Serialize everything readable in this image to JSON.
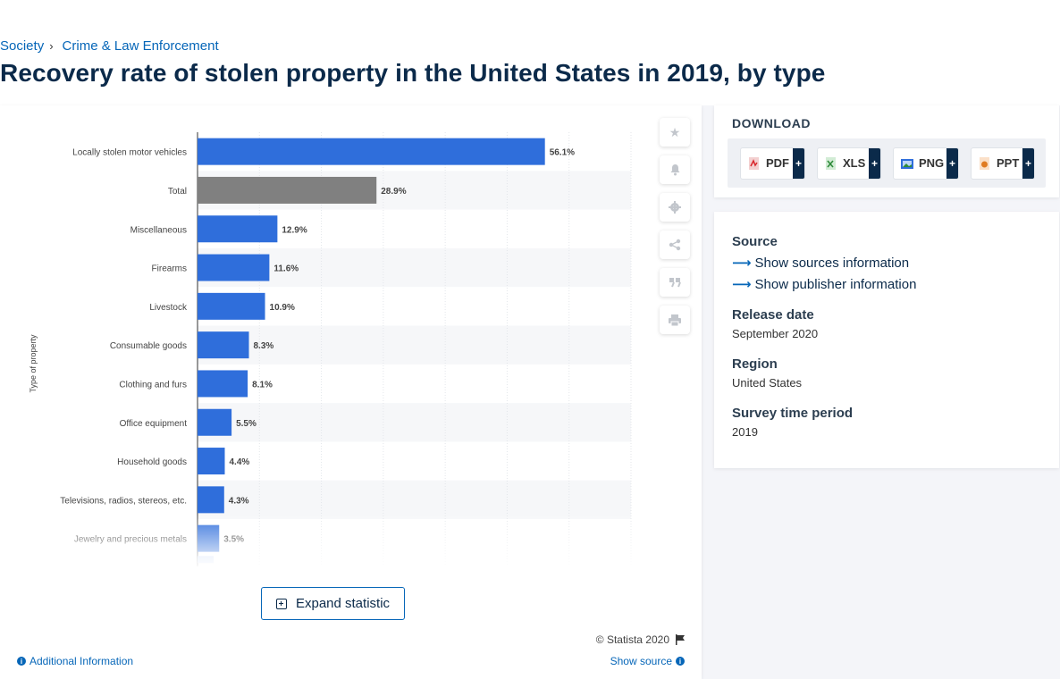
{
  "breadcrumb": {
    "items": [
      "Society",
      "Crime & Law Enforcement"
    ],
    "separator": "›"
  },
  "title": "Recovery rate of stolen property in the United States in 2019, by type",
  "chart_data": {
    "type": "bar",
    "orientation": "horizontal",
    "ylabel": "Type of property",
    "categories": [
      "Locally stolen motor vehicles",
      "Total",
      "Miscellaneous",
      "Firearms",
      "Livestock",
      "Consumable goods",
      "Clothing and furs",
      "Office equipment",
      "Household goods",
      "Televisions, radios, stereos, etc.",
      "Jewelry and precious metals"
    ],
    "values": [
      56.1,
      28.9,
      12.9,
      11.6,
      10.9,
      8.3,
      8.1,
      5.5,
      4.4,
      4.3,
      3.5
    ],
    "value_labels": [
      "56.1%",
      "28.9%",
      "12.9%",
      "11.6%",
      "10.9%",
      "8.3%",
      "8.1%",
      "5.5%",
      "4.4%",
      "4.3%",
      "3.5%"
    ],
    "xlim": [
      0,
      70
    ],
    "grid": true,
    "colors": {
      "default": "#2f6edb",
      "highlight": "#808080"
    },
    "highlight_index": 1
  },
  "tools": [
    "star-icon",
    "bell-icon",
    "gear-icon",
    "share-icon",
    "quote-icon",
    "print-icon"
  ],
  "expand_label": "Expand statistic",
  "copyright": "© Statista 2020",
  "additional_info": "Additional Information",
  "show_source": "Show source",
  "download": {
    "title": "DOWNLOAD",
    "buttons": [
      {
        "label": "PDF",
        "plus": "+",
        "color": "#d9262b"
      },
      {
        "label": "XLS",
        "plus": "+",
        "color": "#2e8b3a"
      },
      {
        "label": "PNG",
        "plus": "+",
        "color": "#2f6edb"
      },
      {
        "label": "PPT",
        "plus": "+",
        "color": "#e07b22"
      }
    ]
  },
  "meta": {
    "source_heading": "Source",
    "show_sources": "Show sources information",
    "show_publisher": "Show publisher information",
    "release_heading": "Release date",
    "release_value": "September 2020",
    "region_heading": "Region",
    "region_value": "United States",
    "survey_heading": "Survey time period",
    "survey_value": "2019"
  }
}
